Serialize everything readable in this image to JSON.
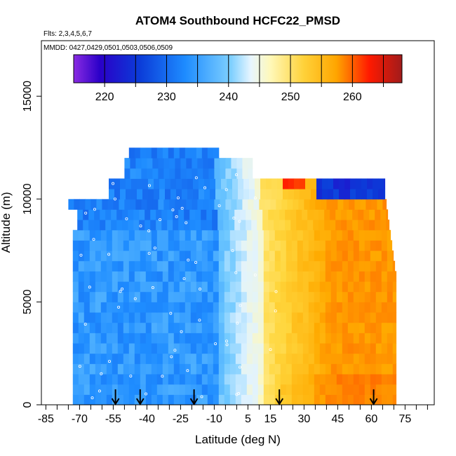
{
  "chart_data": {
    "type": "heatmap",
    "title": "ATOM4 Southbound HCFC22_PMSD",
    "flights_note": "Flts: 2,3,4,5,6,7",
    "dates_note": "MMDD: 0427,0429,0501,0503,0506,0509",
    "xlabel": "Latitude (deg N)",
    "ylabel": "Altitude (m)",
    "xlim": [
      -87,
      88
    ],
    "ylim": [
      0,
      17700
    ],
    "x_ticks": [
      -85,
      -70,
      -55,
      -40,
      -25,
      -10,
      5,
      15,
      30,
      45,
      60,
      75
    ],
    "y_ticks": [
      0,
      5000,
      10000,
      15000
    ],
    "colorbar": {
      "range": [
        215,
        268
      ],
      "ticks": [
        220,
        230,
        240,
        250,
        260
      ],
      "colors": [
        "#7f1fe8",
        "#1400c8",
        "#1c72ff",
        "#2fb0ff",
        "#dff2ff",
        "#fff7b0",
        "#ffc21a",
        "#ff8c00",
        "#ff1c00",
        "#a11a1a"
      ]
    },
    "arrows_latitude": [
      -54,
      -43,
      -19,
      19,
      61
    ],
    "grid": false,
    "legend": "colorbar top"
  }
}
